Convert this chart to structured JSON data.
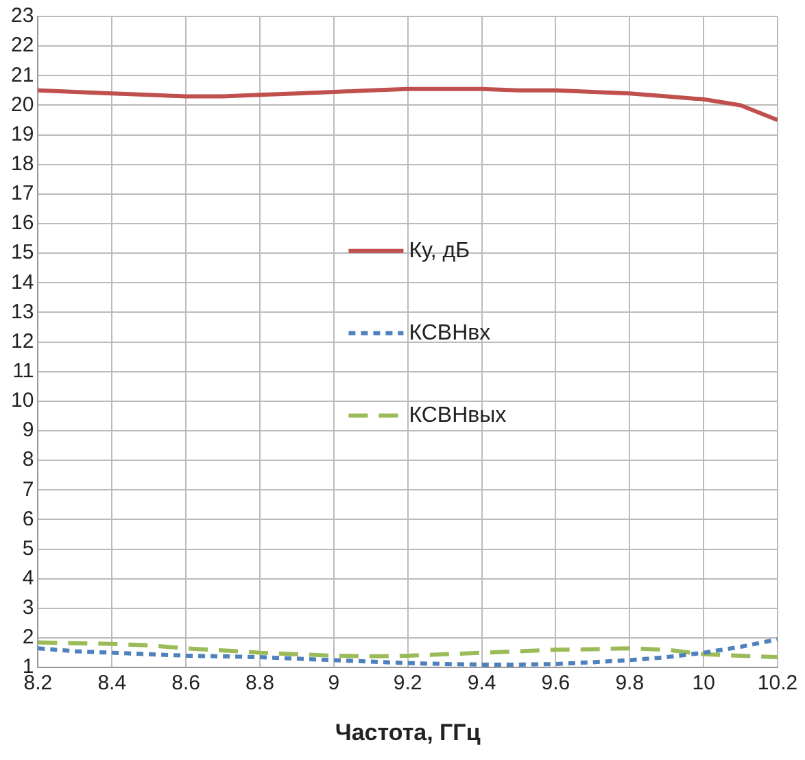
{
  "chart_data": {
    "type": "line",
    "xlabel": "Частота, ГГц",
    "x": [
      8.2,
      8.3,
      8.4,
      8.5,
      8.6,
      8.7,
      8.8,
      8.9,
      9,
      9.1,
      9.2,
      9.3,
      9.4,
      9.5,
      9.6,
      9.7,
      9.8,
      9.9,
      10,
      10.1,
      10.2
    ],
    "xlim": [
      8.2,
      10.2
    ],
    "xticks": [
      {
        "value": 8.2,
        "label": "8.2"
      },
      {
        "value": 8.4,
        "label": "8.4"
      },
      {
        "value": 8.6,
        "label": "8.6"
      },
      {
        "value": 8.8,
        "label": "8.8"
      },
      9,
      {
        "value": 9.2,
        "label": "9.2"
      },
      {
        "value": 9.4,
        "label": "9.4"
      },
      {
        "value": 9.6,
        "label": "9.6"
      },
      {
        "value": 9.8,
        "label": "9.8"
      },
      10,
      {
        "value": 10.2,
        "label": "10.2"
      }
    ],
    "ylim": [
      1,
      23
    ],
    "yticks": [
      1,
      2,
      3,
      4,
      5,
      6,
      7,
      8,
      9,
      10,
      11,
      12,
      13,
      14,
      15,
      16,
      17,
      18,
      19,
      20,
      21,
      22,
      23
    ],
    "grid": true,
    "legend": "center",
    "marker": "none",
    "series": [
      {
        "name": "Ку, дБ",
        "color": "#c0504d",
        "line_style": "solid",
        "values": [
          20.5,
          20.45,
          20.4,
          20.35,
          20.3,
          20.3,
          20.35,
          20.4,
          20.45,
          20.5,
          20.55,
          20.55,
          20.55,
          20.5,
          20.5,
          20.45,
          20.4,
          20.3,
          20.2,
          20.0,
          19.5
        ]
      },
      {
        "name": "КСВНвх",
        "color": "#4f81bd",
        "line_style": "dotted",
        "values": [
          1.65,
          1.55,
          1.5,
          1.45,
          1.4,
          1.38,
          1.35,
          1.3,
          1.25,
          1.2,
          1.15,
          1.12,
          1.1,
          1.1,
          1.12,
          1.18,
          1.25,
          1.35,
          1.5,
          1.7,
          1.95
        ]
      },
      {
        "name": "КСВНвых",
        "color": "#9bbb59",
        "line_style": "dashed",
        "values": [
          1.85,
          1.82,
          1.8,
          1.75,
          1.65,
          1.58,
          1.5,
          1.45,
          1.4,
          1.38,
          1.4,
          1.45,
          1.5,
          1.55,
          1.6,
          1.62,
          1.65,
          1.6,
          1.45,
          1.4,
          1.35
        ]
      }
    ]
  }
}
